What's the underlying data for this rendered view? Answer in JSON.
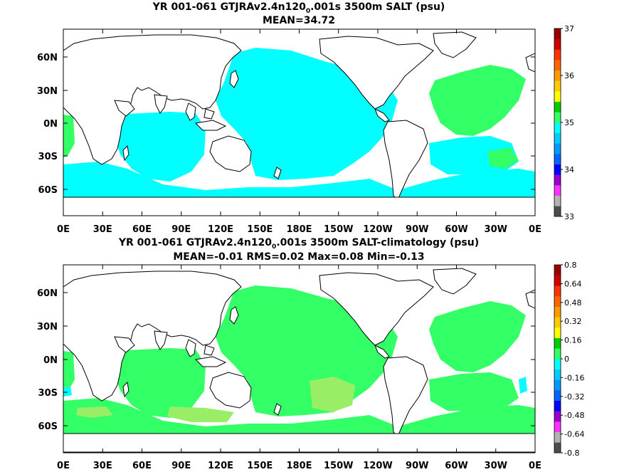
{
  "colors": {
    "ocean_top": "#00ffff",
    "land": "#ffffff",
    "coast": "#000000",
    "green_strong": "#33ff66",
    "green_light": "#66ff99",
    "green_pale": "#99ee66",
    "cyan": "#00ffff"
  },
  "panels": [
    {
      "title_prefix": "YR 001-061 GTJRAv2.4n120",
      "title_sub": "0",
      "title_suffix": ".001s 3500m SALT (psu)",
      "stats": "MEAN=34.72",
      "x_ticks": [
        "0E",
        "30E",
        "60E",
        "90E",
        "120E",
        "150E",
        "180E",
        "150W",
        "120W",
        "90W",
        "60W",
        "30W",
        "0E"
      ],
      "y_ticks": [
        "60N",
        "30N",
        "0N",
        "30S",
        "60S"
      ],
      "colorbar": {
        "labels": [
          "37",
          "36",
          "35",
          "34",
          "33"
        ],
        "colors": [
          "#4d4d4d",
          "#b3b3b3",
          "#ff33ff",
          "#9900cc",
          "#0000ff",
          "#0066ff",
          "#0099ff",
          "#00ccff",
          "#00ffff",
          "#33ff66",
          "#00cc00",
          "#ffff00",
          "#ffcc00",
          "#ff9900",
          "#ff6600",
          "#ff3300",
          "#cc0000",
          "#990000"
        ]
      }
    },
    {
      "title_prefix": "YR 001-061 GTJRAv2.4n120",
      "title_sub": "0",
      "title_suffix": ".001s 3500m SALT-climatology (psu)",
      "stats": "MEAN=-0.01   RMS=0.02   Max=0.08   Min=-0.13",
      "x_ticks": [
        "0E",
        "30E",
        "60E",
        "90E",
        "120E",
        "150E",
        "180E",
        "150W",
        "120W",
        "90W",
        "60W",
        "30W",
        "0E"
      ],
      "y_ticks": [
        "60N",
        "30N",
        "0N",
        "30S",
        "60S"
      ],
      "colorbar": {
        "labels": [
          "0.8",
          "0.64",
          "0.48",
          "0.32",
          "0.16",
          "0",
          "-0.16",
          "-0.32",
          "-0.48",
          "-0.64",
          "-0.8"
        ],
        "colors": [
          "#4d4d4d",
          "#b3b3b3",
          "#ff33ff",
          "#9900cc",
          "#0000ff",
          "#0066ff",
          "#0099ff",
          "#00ccff",
          "#00ffff",
          "#33ff66",
          "#00cc00",
          "#ffff00",
          "#ffcc00",
          "#ff9900",
          "#ff6600",
          "#ff3300",
          "#cc0000",
          "#990000"
        ]
      }
    }
  ]
}
